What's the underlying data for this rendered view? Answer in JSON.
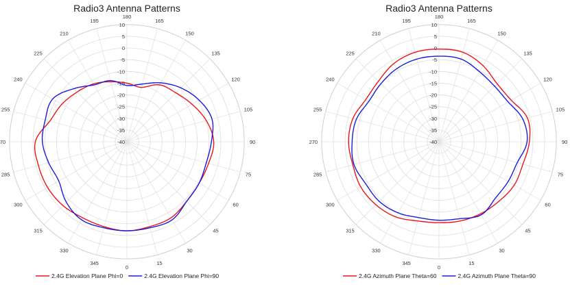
{
  "colors": {
    "series_a": "#e8141b",
    "series_b": "#1a1adb",
    "grid": "#dddddd"
  },
  "chart_data": [
    {
      "type": "polar",
      "title": "Radio3 Antenna Patterns",
      "angle_labels": [
        "0",
        "15",
        "30",
        "45",
        "60",
        "75",
        "90",
        "105",
        "120",
        "135",
        "150",
        "165",
        "180",
        "195",
        "210",
        "225",
        "240",
        "255",
        "270",
        "285",
        "300",
        "315",
        "330",
        "345"
      ],
      "radial_tick_labels": [
        "10",
        "5",
        "0",
        "-5",
        "-10",
        "-15",
        "-20",
        "-25",
        "-30",
        "-35",
        "-40"
      ],
      "rlim": [
        -40,
        10
      ],
      "angle_direction": "counter-clockwise, 0 at bottom",
      "grid": true,
      "legend": "bottom",
      "angles": [
        0,
        15,
        30,
        45,
        60,
        75,
        90,
        105,
        120,
        135,
        150,
        165,
        180,
        195,
        210,
        225,
        240,
        255,
        270,
        285,
        300,
        315,
        330,
        345
      ],
      "series": [
        {
          "name": "2.4G Elevation Plane Phi=0",
          "values": [
            -2,
            -2.5,
            -2.5,
            -4,
            -4.5,
            -4,
            -3,
            -5,
            -8,
            -10.5,
            -12,
            -16,
            -15,
            -13.5,
            -11.5,
            -10,
            -8,
            -6,
            -1,
            -1,
            -1,
            -1.5,
            -2.5,
            -2.5
          ]
        },
        {
          "name": "2.4G Elevation Plane Phi=90",
          "values": [
            -2,
            -2,
            -1.5,
            -4,
            -4.5,
            -5,
            -4,
            -2.5,
            -4.5,
            -7.5,
            -11,
            -14.5,
            -16,
            -13,
            -12,
            -8,
            -3.5,
            -4,
            -4,
            -5.5,
            -6.5,
            -3.5,
            -1.5,
            -2
          ]
        }
      ]
    },
    {
      "type": "polar",
      "title": "Radio3 Antenna Patterns",
      "angle_labels": [
        "0",
        "15",
        "30",
        "45",
        "60",
        "75",
        "90",
        "105",
        "120",
        "135",
        "150",
        "165",
        "180",
        "195",
        "210",
        "225",
        "240",
        "255",
        "270",
        "285",
        "300",
        "315",
        "330",
        "345"
      ],
      "radial_tick_labels": [
        "10",
        "5",
        "0",
        "-5",
        "-10",
        "-15",
        "-20",
        "-25",
        "-30",
        "-35",
        "-40"
      ],
      "rlim": [
        -40,
        10
      ],
      "angle_direction": "counter-clockwise, 0 at bottom",
      "grid": true,
      "legend": "bottom",
      "angles": [
        0,
        15,
        30,
        45,
        60,
        75,
        90,
        105,
        120,
        135,
        150,
        165,
        180,
        195,
        210,
        225,
        240,
        255,
        270,
        285,
        300,
        315,
        330,
        345
      ],
      "series": [
        {
          "name": "2.4G Azimuth Plane Theta=60",
          "values": [
            -5.5,
            -5,
            -4.5,
            -4,
            -3,
            -3,
            -1.5,
            -1,
            -4.5,
            -5,
            -2.5,
            -0.5,
            -0.5,
            -0.5,
            -1.5,
            -3.5,
            -4,
            -2,
            -1.5,
            -2,
            -1.5,
            -2,
            -3,
            -5
          ]
        },
        {
          "name": "2.4G Azimuth Plane Theta=90",
          "values": [
            -6.5,
            -6,
            -4,
            -6,
            -6,
            -5.5,
            -2.5,
            -3,
            -6,
            -6.5,
            -5.5,
            -3.5,
            -3.5,
            -3.5,
            -4,
            -5,
            -5.5,
            -3.5,
            -3,
            -2.5,
            -4,
            -4,
            -5,
            -6.5
          ]
        }
      ]
    }
  ],
  "legends": [
    [
      {
        "label": "2.4G Elevation Plane Phi=0"
      },
      {
        "label": "2.4G Elevation Plane Phi=90"
      }
    ],
    [
      {
        "label": "2.4G Azimuth Plane Theta=60"
      },
      {
        "label": "2.4G Azimuth Plane Theta=90"
      }
    ]
  ]
}
